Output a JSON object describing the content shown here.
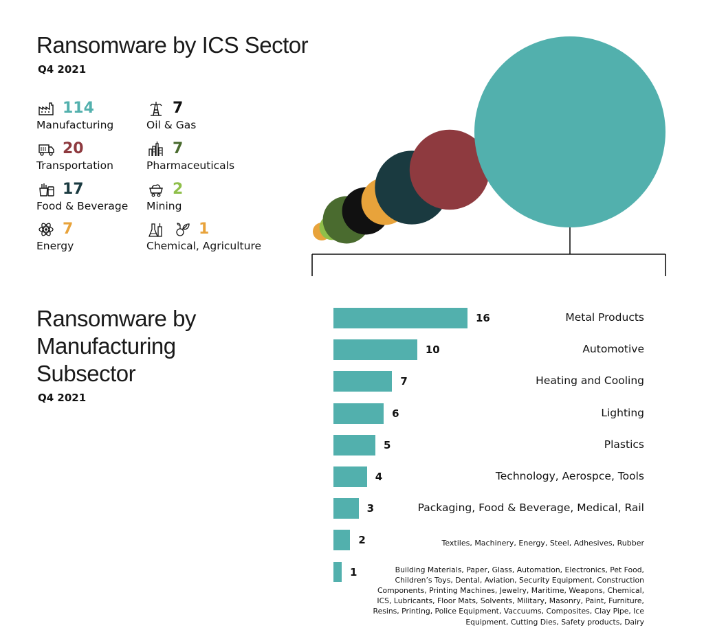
{
  "sector_chart": {
    "title": "Ransomware by ICS Sector",
    "period": "Q4 2021",
    "sectors": [
      {
        "name": "Manufacturing",
        "count": 114,
        "color": "#52b0ad",
        "icon": "factory-icon"
      },
      {
        "name": "Transportation",
        "count": 20,
        "color": "#8e3a3f",
        "icon": "truck-icon"
      },
      {
        "name": "Food & Beverage",
        "count": 17,
        "color": "#1a3a40",
        "icon": "food-beverage-icon"
      },
      {
        "name": "Energy",
        "count": 7,
        "color": "#e8a33b",
        "icon": "atom-icon"
      },
      {
        "name": "Oil & Gas",
        "count": 7,
        "color": "#111111",
        "icon": "oil-rig-icon"
      },
      {
        "name": "Pharmaceuticals",
        "count": 7,
        "color": "#4a6b2f",
        "icon": "pharma-plant-icon"
      },
      {
        "name": "Mining",
        "count": 2,
        "color": "#8fbf4a",
        "icon": "mine-cart-icon"
      },
      {
        "name": "Chemical, Agriculture",
        "count": 1,
        "color": "#e8a33b",
        "icon": "chemical-agriculture-icon"
      }
    ]
  },
  "chart_data": [
    {
      "type": "bubble",
      "title": "Ransomware by ICS Sector",
      "subtitle": "Q4 2021",
      "categories": [
        "Chemical, Agriculture",
        "Mining",
        "Pharmaceuticals",
        "Oil & Gas",
        "Energy",
        "Food & Beverage",
        "Transportation",
        "Manufacturing"
      ],
      "values": [
        1,
        2,
        7,
        7,
        7,
        17,
        20,
        114
      ],
      "colors": [
        "#e8a33b",
        "#8fbf4a",
        "#4a6b2f",
        "#111111",
        "#e8a33b",
        "#1a3a40",
        "#8e3a3f",
        "#52b0ad"
      ]
    },
    {
      "type": "bar",
      "orientation": "horizontal",
      "title": "Ransomware by Manufacturing Subsector",
      "subtitle": "Q4 2021",
      "color": "#52b0ad",
      "xlim": [
        0,
        16
      ],
      "categories": [
        "Metal Products",
        "Automotive",
        "Heating and Cooling",
        "Lighting",
        "Plastics",
        "Technology, Aerospce, Tools",
        "Packaging, Food & Beverage, Medical, Rail",
        "Textiles, Machinery, Energy, Steel, Adhesives, Rubber",
        "Building Materials, Paper, Glass, Automation, Electronics, Pet Food, Children’s Toys, Dental, Aviation, Security Equipment, Construction Components, Printing Machines, Jewelry, Maritime, Weapons, Chemical, ICS, Lubricants, Floor Mats, Solvents, Military, Masonry, Paint, Furniture, Resins, Printing, Police Equipment, Vaccuums, Composites, Clay Pipe, Ice Equipment, Cutting Dies, Safety products, Dairy"
      ],
      "values": [
        16,
        10,
        7,
        6,
        5,
        4,
        3,
        2,
        1
      ]
    }
  ],
  "subsector_chart": {
    "title_lines": [
      "Ransomware by",
      "Manufacturing",
      "Subsector"
    ],
    "period": "Q4 2021"
  }
}
